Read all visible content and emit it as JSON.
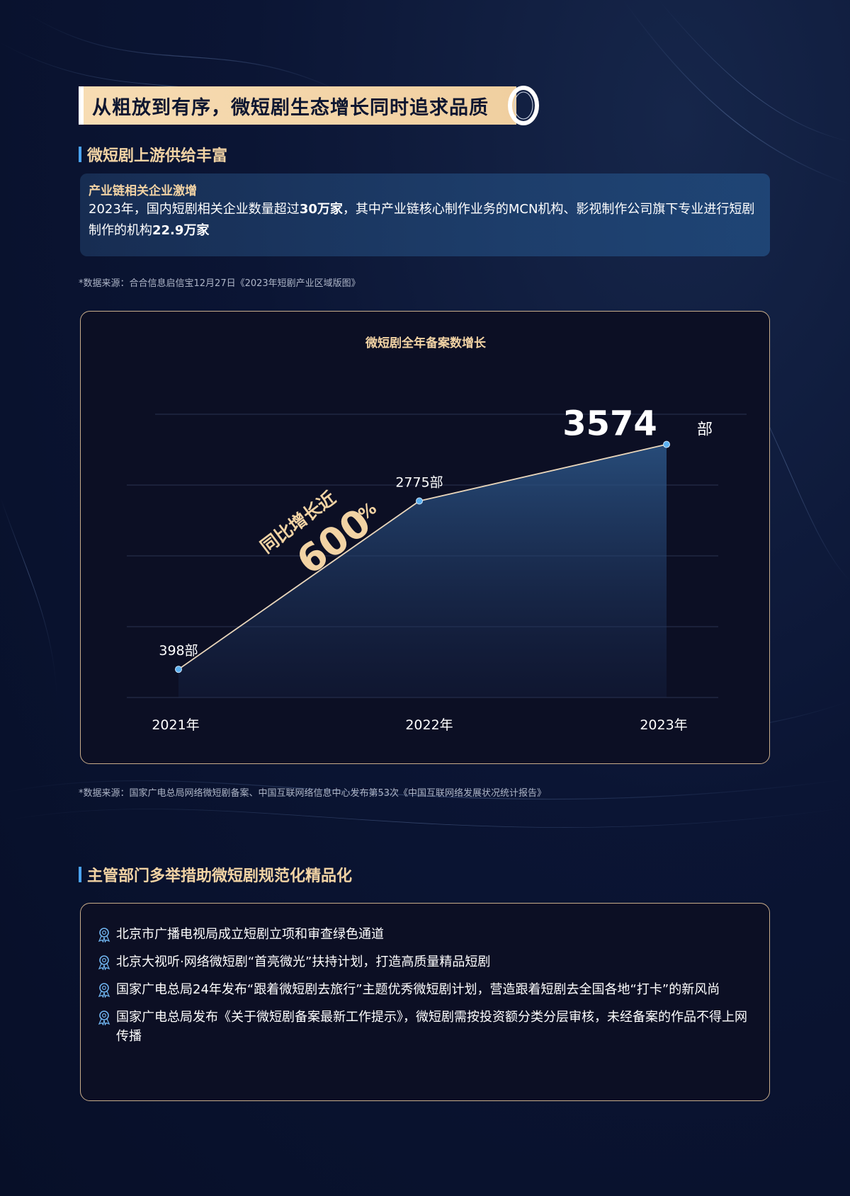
{
  "title": "从粗放到有序，微短剧生态增长同时追求品质",
  "section1": {
    "heading": "微短剧上游供给丰富",
    "box_subtitle": "产业链相关企业激增",
    "box_text": {
      "part1": "2023年，国内短剧相关企业数量超过",
      "bold1": "30万家",
      "part2": "，其中产业链核心制作业务的MCN机构、影视制作公司旗下专业进行短剧制作的机构",
      "bold2": "22.9万家"
    },
    "source": "*数据来源：合合信息启信宝12月27日《2023年短剧产业区域版图》"
  },
  "chart_data": {
    "type": "area",
    "title": "微短剧全年备案数增长",
    "categories": [
      "2021年",
      "2022年",
      "2023年"
    ],
    "values": [
      398,
      2775,
      3574
    ],
    "data_labels": [
      "398部",
      "2775部",
      "3574"
    ],
    "last_unit": "部",
    "annotation": {
      "line1": "同比增长近",
      "value": "600",
      "unit": "%"
    },
    "ylim": [
      0,
      4000
    ],
    "grid": true
  },
  "chart_source": "*数据来源：国家广电总局网络微短剧备案、中国互联网络信息中心发布第53次《中国互联网络发展状况统计报告》",
  "section2": {
    "heading": "主管部门多举措助微短剧规范化精品化",
    "items": [
      "北京市广播电视局成立短剧立项和审查绿色通道",
      "北京大视听·网络微短剧“首亮微光”扶持计划，打造高质量精品短剧",
      "国家广电总局24年发布“跟着微短剧去旅行”主题优秀微短剧计划，营造跟着短剧去全国各地“打卡”的新风尚",
      "国家广电总局发布《关于微短剧备案最新工作提示》，微短剧需按投资额分类分层审核，未经备案的作品不得上网传播"
    ]
  },
  "colors": {
    "accent": "#f2d3a4",
    "blue": "#4aa3f0",
    "background": "#0b1534"
  }
}
